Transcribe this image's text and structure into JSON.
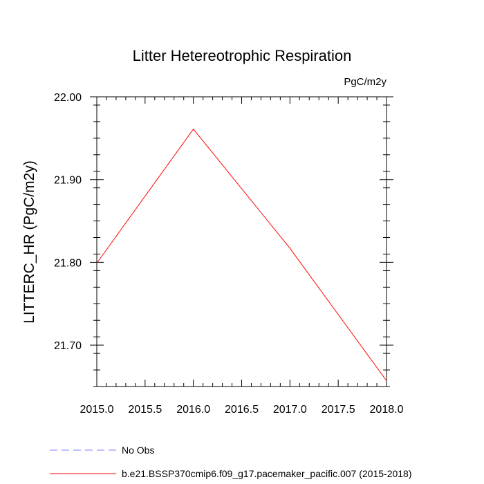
{
  "chart_data": {
    "type": "line",
    "title": "Litter Hetereotrophic Respiration",
    "units": "PgC/m2y",
    "xlabel": "",
    "ylabel": "LITTERC_HR  (PgC/m2y)",
    "xlim": [
      2015.0,
      2018.0
    ],
    "ylim": [
      21.65,
      22.0
    ],
    "xticks": [
      2015.0,
      2015.5,
      2016.0,
      2016.5,
      2017.0,
      2017.5,
      2018.0
    ],
    "xtick_labels": [
      "2015.0",
      "2015.5",
      "2016.0",
      "2016.5",
      "2017.0",
      "2017.5",
      "2018.0"
    ],
    "yticks": [
      21.7,
      21.8,
      21.9,
      22.0
    ],
    "ytick_labels": [
      "21.70",
      "21.80",
      "21.90",
      "22.00"
    ],
    "series": [
      {
        "name": "b.e21.BSSP370cmip6.f09_g17.pacemaker_pacific.007 (2015-2018)",
        "color": "#ff0000",
        "style": "solid",
        "x": [
          2015,
          2016,
          2017,
          2018
        ],
        "y": [
          21.799,
          21.961,
          21.817,
          21.657
        ]
      }
    ],
    "legend": [
      {
        "label": "No Obs",
        "color": "#8080ff",
        "style": "dashed"
      },
      {
        "label": "b.e21.BSSP370cmip6.f09_g17.pacemaker_pacific.007 (2015-2018)",
        "color": "#ff0000",
        "style": "solid"
      }
    ],
    "legend_position": "bottom-left",
    "grid": false
  }
}
